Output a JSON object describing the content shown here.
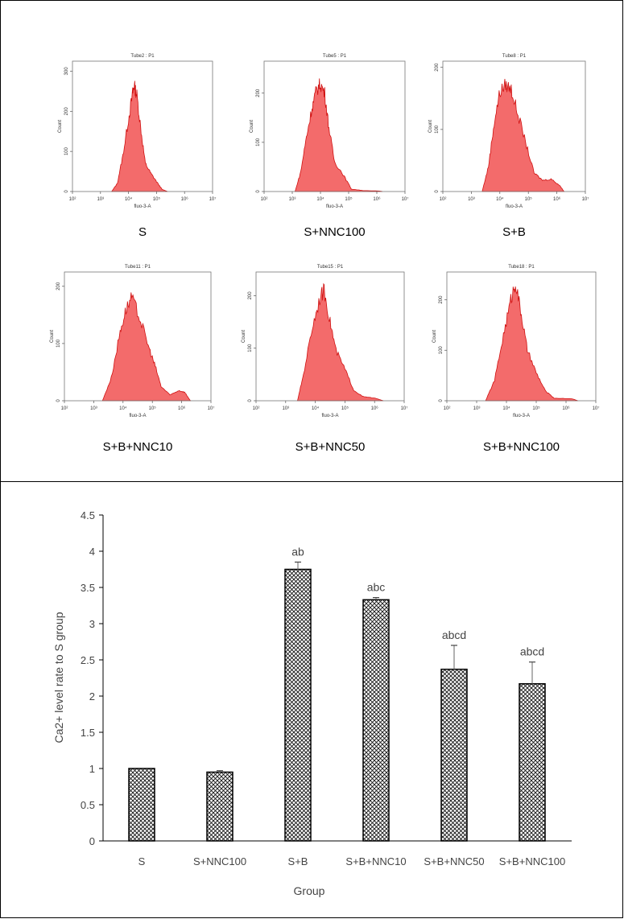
{
  "chart_data": [
    {
      "type": "histogram",
      "layout": "grid 2x3",
      "fill_color": "#f36b6b",
      "line_color": "#d01010",
      "xlabel": "fluo-3-A",
      "ylabel": "Count",
      "x_scale": "log",
      "xlim": [
        100,
        10000000
      ],
      "x_ticks": [
        "10²",
        "10³",
        "10⁴",
        "10⁵",
        "10⁶",
        "10⁷"
      ],
      "panels": [
        {
          "title": "Tube2 : P1",
          "caption": "S",
          "ylim": [
            0,
            325
          ],
          "y_ticks": [
            0,
            100,
            200,
            300
          ],
          "points": [
            [
              3.4,
              0
            ],
            [
              3.6,
              20
            ],
            [
              3.8,
              90
            ],
            [
              4.0,
              180
            ],
            [
              4.15,
              245
            ],
            [
              4.2,
              265
            ],
            [
              4.3,
              240
            ],
            [
              4.45,
              150
            ],
            [
              4.6,
              70
            ],
            [
              4.8,
              45
            ],
            [
              5.0,
              25
            ],
            [
              5.2,
              5
            ],
            [
              5.4,
              0
            ]
          ]
        },
        {
          "title": "Tube5 : P1",
          "caption": "S+NNC100",
          "ylim": [
            0,
            265
          ],
          "y_ticks": [
            0,
            100,
            200
          ],
          "points": [
            [
              3.1,
              0
            ],
            [
              3.3,
              40
            ],
            [
              3.5,
              110
            ],
            [
              3.7,
              170
            ],
            [
              3.85,
              205
            ],
            [
              4.0,
              219
            ],
            [
              4.15,
              200
            ],
            [
              4.3,
              130
            ],
            [
              4.5,
              60
            ],
            [
              4.8,
              35
            ],
            [
              5.1,
              5
            ],
            [
              5.5,
              2
            ],
            [
              6.1,
              1
            ],
            [
              6.2,
              0
            ]
          ]
        },
        {
          "title": "Tube8 : P1",
          "caption": "S+B",
          "ylim": [
            0,
            210
          ],
          "y_ticks": [
            0,
            100,
            200
          ],
          "points": [
            [
              3.38,
              0
            ],
            [
              3.6,
              40
            ],
            [
              3.8,
              110
            ],
            [
              4.0,
              160
            ],
            [
              4.2,
              172
            ],
            [
              4.4,
              165
            ],
            [
              4.6,
              130
            ],
            [
              4.9,
              80
            ],
            [
              5.2,
              30
            ],
            [
              5.5,
              18
            ],
            [
              5.8,
              20
            ],
            [
              6.1,
              10
            ],
            [
              6.25,
              0
            ]
          ]
        },
        {
          "title": "Tube11 : P1",
          "caption": "S+B+NNC10",
          "ylim": [
            0,
            225
          ],
          "y_ticks": [
            0,
            100,
            200
          ],
          "points": [
            [
              3.3,
              0
            ],
            [
              3.6,
              40
            ],
            [
              3.9,
              120
            ],
            [
              4.1,
              160
            ],
            [
              4.3,
              180
            ],
            [
              4.6,
              140
            ],
            [
              4.9,
              90
            ],
            [
              5.1,
              60
            ],
            [
              5.3,
              25
            ],
            [
              5.6,
              10
            ],
            [
              5.9,
              18
            ],
            [
              6.1,
              15
            ],
            [
              6.3,
              0
            ]
          ]
        },
        {
          "title": "Tube15 : P1",
          "caption": "S+B+NNC50",
          "ylim": [
            0,
            245
          ],
          "y_ticks": [
            0,
            100,
            200
          ],
          "points": [
            [
              3.4,
              0
            ],
            [
              3.6,
              50
            ],
            [
              3.9,
              140
            ],
            [
              4.15,
              195
            ],
            [
              4.3,
              210
            ],
            [
              4.5,
              150
            ],
            [
              4.7,
              95
            ],
            [
              5.0,
              60
            ],
            [
              5.3,
              20
            ],
            [
              5.6,
              8
            ],
            [
              6.0,
              5
            ],
            [
              6.3,
              0
            ]
          ]
        },
        {
          "title": "Tube18 : P1",
          "caption": "S+B+NNC100",
          "ylim": [
            0,
            255
          ],
          "y_ticks": [
            0,
            100,
            200
          ],
          "points": [
            [
              3.3,
              0
            ],
            [
              3.6,
              40
            ],
            [
              3.9,
              130
            ],
            [
              4.15,
              200
            ],
            [
              4.3,
              235
            ],
            [
              4.5,
              170
            ],
            [
              4.7,
              100
            ],
            [
              5.0,
              55
            ],
            [
              5.3,
              20
            ],
            [
              5.6,
              5
            ],
            [
              6.2,
              4
            ],
            [
              6.4,
              0
            ]
          ]
        }
      ]
    },
    {
      "type": "bar",
      "categories": [
        "S",
        "S+NNC100",
        "S+B",
        "S+B+NNC10",
        "S+B+NNC50",
        "S+B+NNC100"
      ],
      "values": [
        1.0,
        0.95,
        3.75,
        3.33,
        2.37,
        2.17
      ],
      "errors": [
        0.0,
        0.02,
        0.1,
        0.03,
        0.33,
        0.3
      ],
      "annotations": [
        "",
        "",
        "ab",
        "abc",
        "abcd",
        "abcd"
      ],
      "xlabel": "Group",
      "ylabel": "Ca2+ level  rate to S group",
      "ylim": [
        0,
        4.5
      ],
      "y_ticks": [
        "0",
        "0.5",
        "1",
        "1.5",
        "2",
        "2.5",
        "3",
        "3.5",
        "4",
        "4.5"
      ],
      "bar_fill": "crosshatch",
      "grid": false
    }
  ]
}
